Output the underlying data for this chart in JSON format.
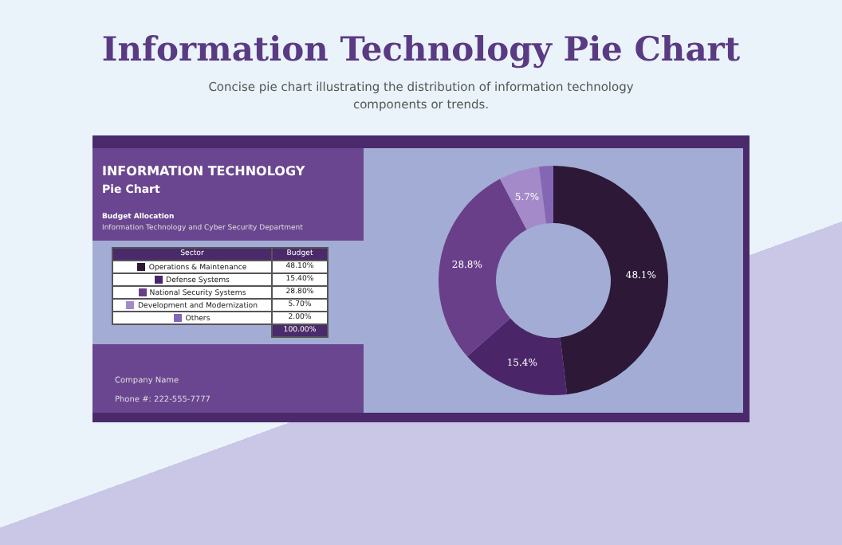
{
  "chart_data": {
    "type": "donut",
    "title": "Information Technology Pie Chart",
    "subtitle": "Concise pie chart illustrating the distribution of information technology components or trends.",
    "categories": [
      "Operations & Maintenance",
      "Defense Systems",
      "National Security Systems",
      "Development and Modernization",
      "Others"
    ],
    "values": [
      48.1,
      15.4,
      28.8,
      5.7,
      2.0
    ],
    "colors": [
      "#2d1838",
      "#4a2668",
      "#6a3f8a",
      "#a48ac8",
      "#8566b5"
    ],
    "legend": "left",
    "value_labels": [
      "48.1%",
      "15.4%",
      "28.8%",
      "5.7%",
      null
    ],
    "annotations": [
      "INFORMATION TECHNOLOGY",
      "Pie Chart",
      "Budget Allocation",
      "Information Technology and Cyber Security Department",
      "Sector",
      "Budget",
      "48.10%",
      "15.40%",
      "28.80%",
      "5.70%",
      "2.00%",
      "100.00%",
      "Company Name",
      "Phone #: 222-555-7777"
    ]
  }
}
